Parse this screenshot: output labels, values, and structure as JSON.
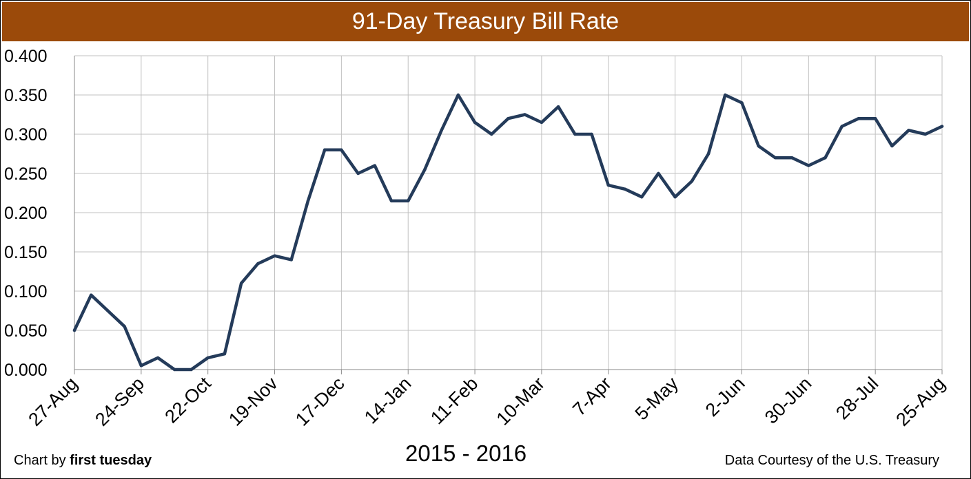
{
  "chart_data": {
    "type": "line",
    "title": "91-Day Treasury Bill Rate",
    "xlabel": "2015 - 2016",
    "ylabel": "",
    "ylim": [
      0,
      0.4
    ],
    "yticks": [
      "0.000",
      "0.050",
      "0.100",
      "0.150",
      "0.200",
      "0.250",
      "0.300",
      "0.350",
      "0.400"
    ],
    "xtick_labels": [
      "27-Aug",
      "24-Sep",
      "22-Oct",
      "19-Nov",
      "17-Dec",
      "14-Jan",
      "11-Feb",
      "10-Mar",
      "7-Apr",
      "5-May",
      "2-Jun",
      "30-Jun",
      "28-Jul",
      "25-Aug"
    ],
    "grid": true,
    "series": [
      {
        "name": "91-Day Treasury Bill Rate",
        "color": "#243b5a",
        "values": [
          0.05,
          0.095,
          0.075,
          0.055,
          0.005,
          0.015,
          0.0,
          0.0,
          0.015,
          0.02,
          0.11,
          0.135,
          0.145,
          0.14,
          0.215,
          0.28,
          0.28,
          0.25,
          0.26,
          0.215,
          0.215,
          0.255,
          0.305,
          0.35,
          0.315,
          0.3,
          0.32,
          0.325,
          0.315,
          0.335,
          0.3,
          0.3,
          0.235,
          0.23,
          0.22,
          0.25,
          0.22,
          0.24,
          0.275,
          0.35,
          0.34,
          0.285,
          0.27,
          0.27,
          0.26,
          0.27,
          0.31,
          0.32,
          0.32,
          0.285,
          0.305,
          0.3,
          0.31
        ]
      }
    ]
  },
  "credits": {
    "left_prefix": "Chart by",
    "left_brand": "first tuesday",
    "right": "Data Courtesy of the U.S. Treasury"
  },
  "colors": {
    "title_bar": "#9b4a0a",
    "line": "#243b5a",
    "grid": "#c0c0c0"
  }
}
